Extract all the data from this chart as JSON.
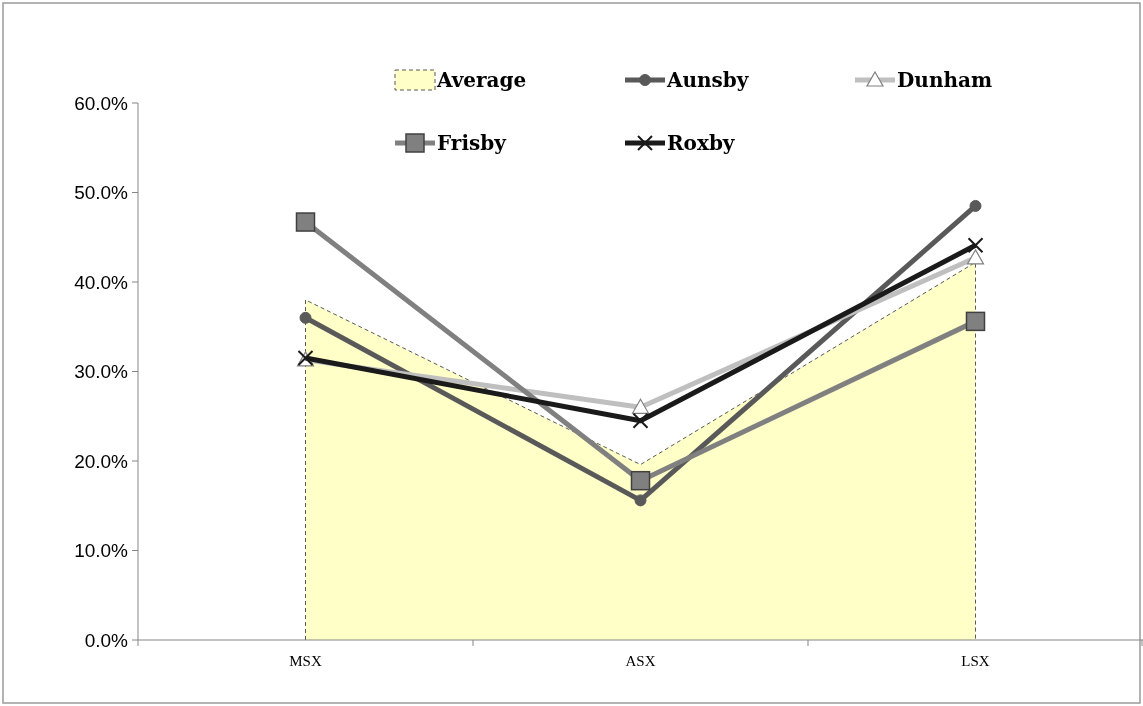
{
  "chart_data": {
    "type": "line",
    "categories": [
      "MSX",
      "ASX",
      "LSX"
    ],
    "series": [
      {
        "name": "Average",
        "type": "area",
        "color": "#ffffc8",
        "line_style": "dashed",
        "marker": "none",
        "values": [
          38.0,
          19.6,
          42.2
        ]
      },
      {
        "name": "Aunsby",
        "color": "#595959",
        "marker": "circle",
        "values": [
          36.0,
          15.6,
          48.5
        ]
      },
      {
        "name": "Dunham",
        "color": "#bfbfbf",
        "marker": "triangle",
        "values": [
          31.3,
          26.0,
          42.7
        ]
      },
      {
        "name": "Frisby",
        "color": "#808080",
        "marker": "square",
        "values": [
          46.7,
          17.8,
          35.6
        ]
      },
      {
        "name": "Roxby",
        "color": "#1a1a1a",
        "marker": "cross",
        "values": [
          31.5,
          24.5,
          44.1
        ]
      }
    ],
    "ylim": [
      0,
      60
    ],
    "yticks": [
      {
        "value": 0,
        "label": "0.0%"
      },
      {
        "value": 10,
        "label": "10.0%"
      },
      {
        "value": 20,
        "label": "20.0%"
      },
      {
        "value": 30,
        "label": "30.0%"
      },
      {
        "value": 40,
        "label": "40.0%"
      },
      {
        "value": 50,
        "label": "50.0%"
      },
      {
        "value": 60,
        "label": "60.0%"
      }
    ],
    "grid": false,
    "legend": "top"
  }
}
